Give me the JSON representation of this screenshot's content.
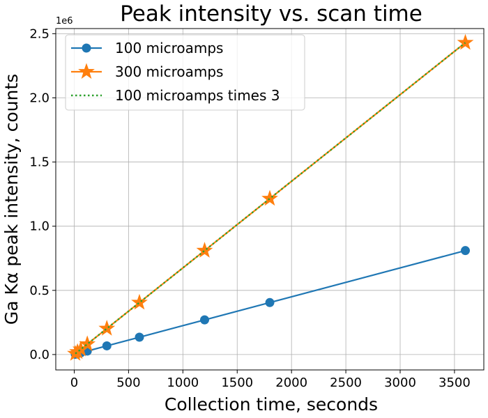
{
  "chart_data": {
    "type": "line",
    "title": "Peak intensity vs. scan time",
    "xlabel": "Collection time, seconds",
    "ylabel": "Ga Kα peak intensity, counts",
    "y_offset_label": "1e6",
    "xlim": [
      -170,
      3770
    ],
    "ylim": [
      -120000,
      2540000
    ],
    "xticks": [
      0,
      500,
      1000,
      1500,
      2000,
      2500,
      3000,
      3500
    ],
    "yticks": [
      0,
      500000,
      1000000,
      1500000,
      2000000,
      2500000
    ],
    "ytick_labels": [
      "0.0",
      "0.5",
      "1.0",
      "1.5",
      "2.0",
      "2.5"
    ],
    "grid": true,
    "legend_position": "top-left",
    "series": [
      {
        "name": "100 microamps",
        "color": "#1f77b4",
        "line_style": "solid",
        "marker": "circle",
        "x": [
          10,
          30,
          60,
          120,
          300,
          600,
          1200,
          1800,
          3600
        ],
        "y": [
          2250,
          6750,
          13500,
          27000,
          67500,
          135000,
          270000,
          405000,
          810000
        ]
      },
      {
        "name": "300 microamps",
        "color": "#ff7f0e",
        "line_style": "solid",
        "marker": "star",
        "x": [
          10,
          30,
          60,
          120,
          300,
          600,
          1200,
          1800,
          3600
        ],
        "y": [
          6750,
          20250,
          40500,
          81000,
          202500,
          405000,
          810000,
          1215000,
          2430000
        ]
      },
      {
        "name": "100 microamps times 3",
        "color": "#2ca02c",
        "line_style": "dotted",
        "marker": "none",
        "x": [
          10,
          30,
          60,
          120,
          300,
          600,
          1200,
          1800,
          3600
        ],
        "y": [
          6750,
          20250,
          40500,
          81000,
          202500,
          405000,
          810000,
          1215000,
          2430000
        ]
      }
    ]
  }
}
